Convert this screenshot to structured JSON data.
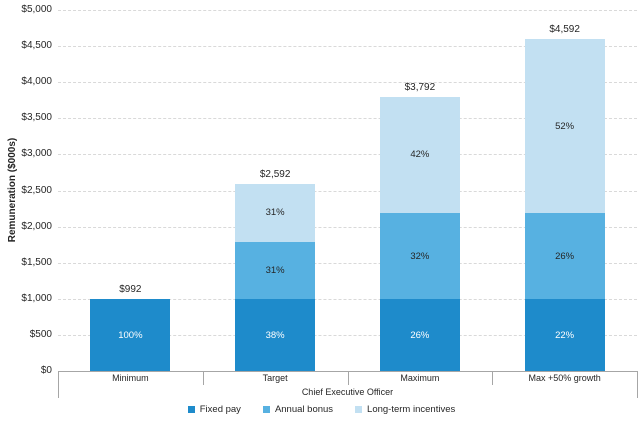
{
  "chart_data": {
    "type": "bar",
    "subtype": "stacked-column",
    "title": "",
    "ylabel": "Remuneration ($000s)",
    "group_label": "Chief Executive Officer",
    "ylim": [
      0,
      5000
    ],
    "ytick_step": 500,
    "ytick_labels": [
      "$0",
      "$500",
      "$1,000",
      "$1,500",
      "$2,000",
      "$2,500",
      "$3,000",
      "$3,500",
      "$4,000",
      "$4,500",
      "$5,000"
    ],
    "grid": "dashed-horizontal",
    "legend_position": "bottom",
    "categories": [
      "Minimum",
      "Target",
      "Maximum",
      "Max +50% growth"
    ],
    "series": [
      {
        "name": "Fixed pay",
        "color": "#1e8bcb",
        "label_color": "#ffffff",
        "values": [
          992,
          992,
          992,
          992
        ],
        "pct_labels": [
          "100%",
          "38%",
          "26%",
          "22%"
        ]
      },
      {
        "name": "Annual bonus",
        "color": "#57b1e1",
        "label_color": "#262626",
        "values": [
          0,
          800,
          1200,
          1200
        ],
        "pct_labels": [
          "",
          "31%",
          "32%",
          "26%"
        ]
      },
      {
        "name": "Long-term incentives",
        "color": "#c2e0f2",
        "label_color": "#262626",
        "values": [
          0,
          800,
          1600,
          2400
        ],
        "pct_labels": [
          "",
          "31%",
          "42%",
          "52%"
        ]
      }
    ],
    "totals": [
      992,
      2592,
      3792,
      4592
    ],
    "total_labels": [
      "$992",
      "$2,592",
      "$3,792",
      "$4,592"
    ],
    "colors": {
      "gridline": "#d9d9d9",
      "axis": "#a6a6a6",
      "text": "#262626",
      "background": "#ffffff"
    }
  }
}
